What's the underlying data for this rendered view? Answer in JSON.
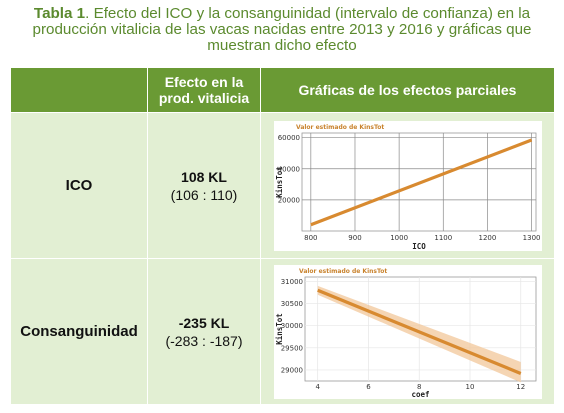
{
  "caption": {
    "label": "Tabla 1",
    "text": ". Efecto del ICO y la consanguinidad (intervalo de confianza) en la producción vitalicia de las vacas nacidas entre 2013 y 2016 y gráficas que muestran dicho efecto"
  },
  "table": {
    "headers": [
      "",
      "Efecto en la prod. vitalicia",
      "Gráficas de los efectos parciales"
    ],
    "rows": [
      {
        "label": "ICO",
        "effect": "108 KL",
        "ci": "(106 : 110)"
      },
      {
        "label": "Consanguinidad",
        "effect": "-235 KL",
        "ci": "(-283 : -187)"
      }
    ]
  },
  "chart_data": [
    {
      "type": "line",
      "title": "Valor estimado de KinsTot",
      "xlabel": "ICO",
      "ylabel": "KinsTot",
      "x": [
        800,
        1300
      ],
      "y": [
        4000,
        58500
      ],
      "ci_lower": [
        3200,
        57600
      ],
      "ci_upper": [
        4800,
        59400
      ],
      "xlim": [
        780,
        1310
      ],
      "ylim": [
        0,
        63000
      ],
      "xticks": [
        "800",
        "900",
        "1000",
        "1100",
        "1200",
        "1300"
      ],
      "yticks": [
        "20000",
        "40000",
        "60000"
      ],
      "grid": true,
      "colors": {
        "line": "#d88a30",
        "band": "#f1c79a",
        "grid": "#8a8a8a"
      }
    },
    {
      "type": "line",
      "title": "Valor estimado de KinsTot",
      "xlabel": "coef",
      "ylabel": "KinsTot",
      "x": [
        4,
        12
      ],
      "y": [
        30800,
        28920
      ],
      "ci_lower": [
        30700,
        28720
      ],
      "ci_upper": [
        30900,
        29180
      ],
      "xlim": [
        3.5,
        12.6
      ],
      "ylim": [
        28750,
        31100
      ],
      "xticks": [
        "4",
        "6",
        "8",
        "10",
        "12"
      ],
      "yticks": [
        "29000",
        "29500",
        "30000",
        "30500",
        "31000"
      ],
      "grid": true,
      "colors": {
        "line": "#d88a30",
        "band": "#f1c79a",
        "grid": "#e6e6e6"
      }
    }
  ]
}
